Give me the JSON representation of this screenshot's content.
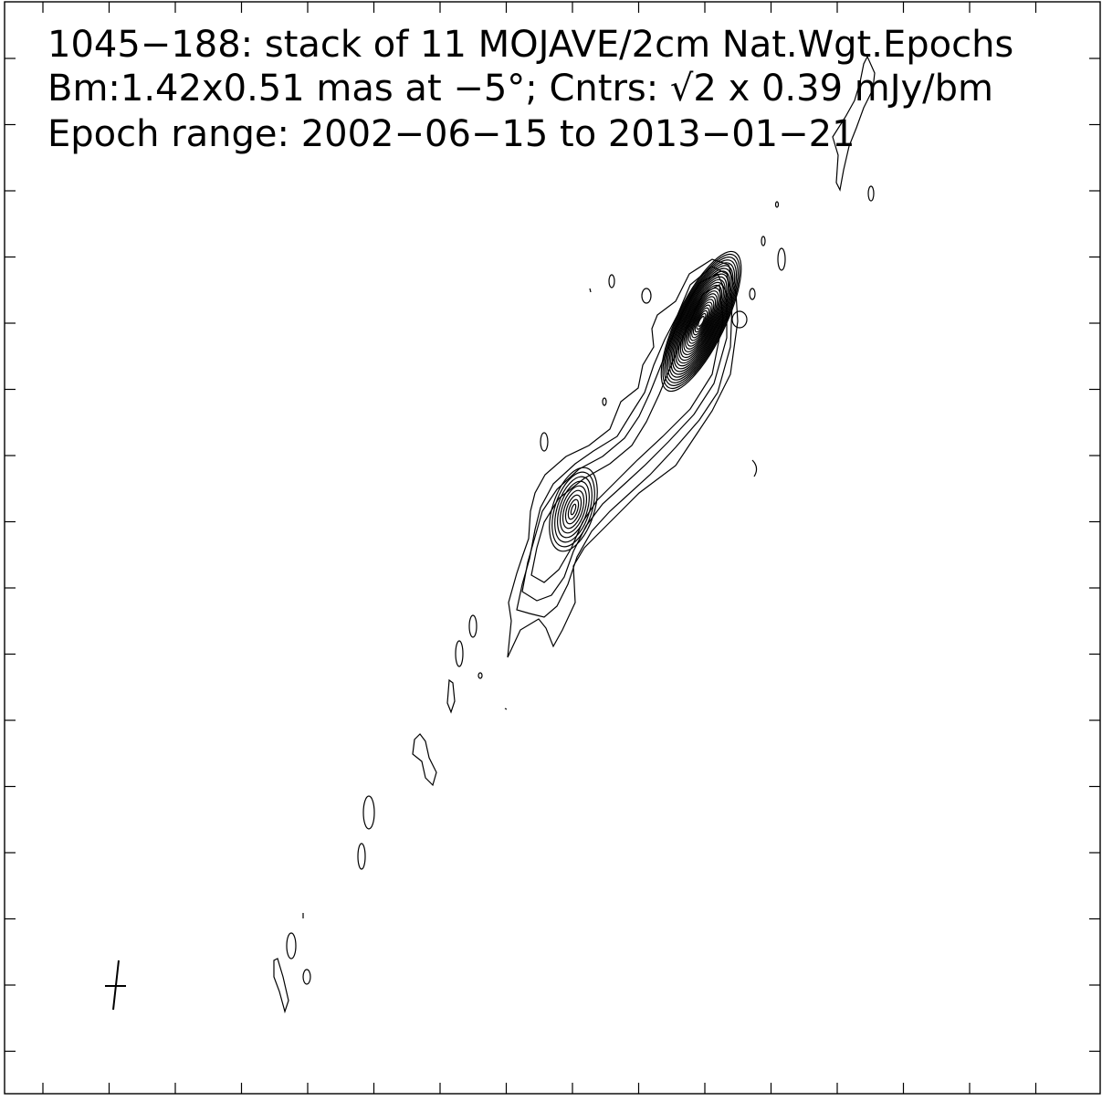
{
  "title_lines": [
    "1045−188: stack of 11 MOJAVE/2cm Nat.Wgt.Epochs",
    "Bm:1.42x0.51 mas at −5°; Cntrs: √2 x 0.39 mJy/bm",
    "Epoch range: 2002−06−15 to 2013−01−21"
  ],
  "colors": {
    "contour": "#000000",
    "background": "#ffffff"
  },
  "image": {
    "source": "1045−188",
    "epochs_stacked": 11,
    "survey": "MOJAVE/2cm",
    "weighting": "Natural",
    "beam": {
      "major_mas": 1.42,
      "minor_mas": 0.51,
      "pa_deg": -5
    },
    "contour_base_mJy_per_beam": 0.39,
    "contour_step": "√2",
    "epoch_start": "2002-06-15",
    "epoch_end": "2013-01-21"
  }
}
